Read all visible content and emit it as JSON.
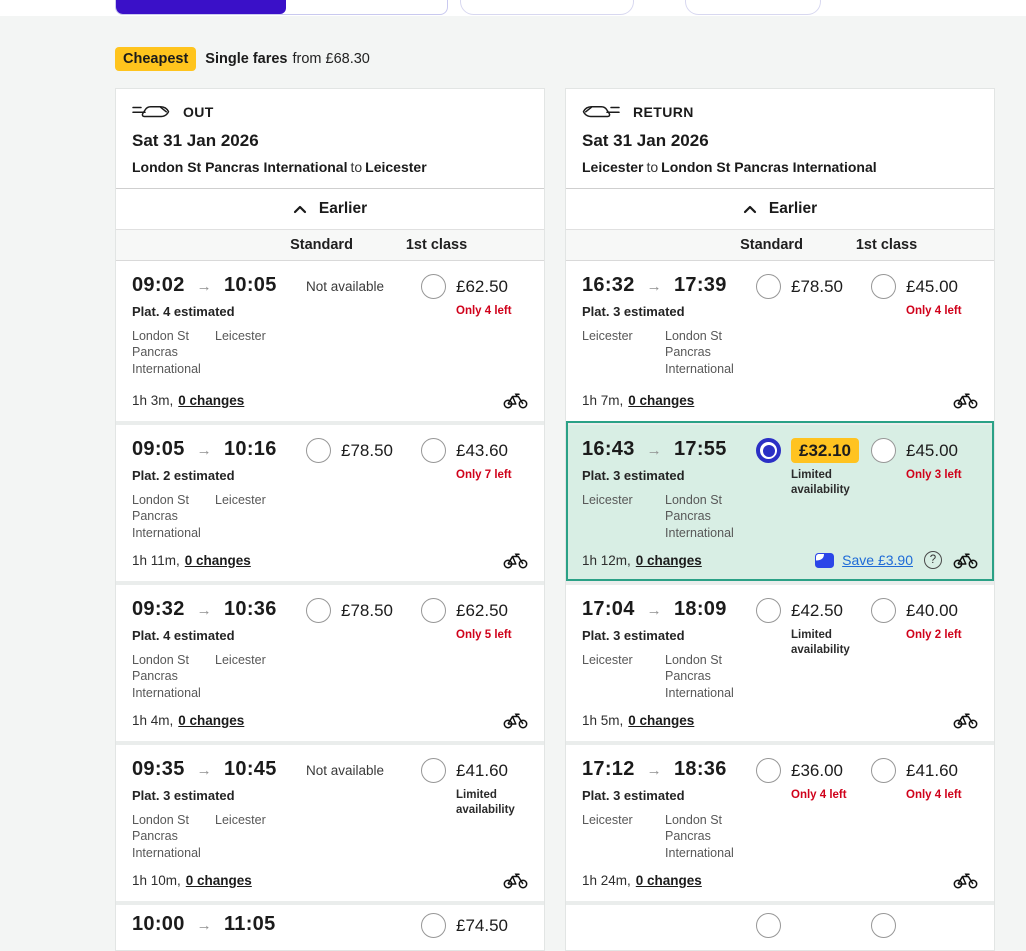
{
  "top_bar": {
    "segment_fill_color": "#3a10c8"
  },
  "banner": {
    "badge": "Cheapest",
    "title": "Single fares",
    "subtitle": "from £68.30"
  },
  "labels": {
    "standard": "Standard",
    "first_class": "1st class",
    "earlier": "Earlier",
    "to": "to",
    "help_glyph": "?"
  },
  "out": {
    "direction": "OUT",
    "date": "Sat 31 Jan 2026",
    "origin": "London St Pancras International",
    "destination": "Leicester",
    "rows": [
      {
        "dep": "09:02",
        "arr": "10:05",
        "platform": "Plat. 4 estimated",
        "from": "London St Pancras International",
        "to": "Leicester",
        "duration": "1h 3m,",
        "changes": "0 changes",
        "standard": {
          "type": "na",
          "label": "Not available"
        },
        "first": {
          "type": "fare",
          "price": "£62.50",
          "note": "Only 4 left",
          "note_style": "scarce"
        }
      },
      {
        "dep": "09:05",
        "arr": "10:16",
        "platform": "Plat. 2 estimated",
        "from": "London St Pancras International",
        "to": "Leicester",
        "duration": "1h 11m,",
        "changes": "0 changes",
        "standard": {
          "type": "fare",
          "price": "£78.50"
        },
        "first": {
          "type": "fare",
          "price": "£43.60",
          "note": "Only 7 left",
          "note_style": "scarce"
        }
      },
      {
        "dep": "09:32",
        "arr": "10:36",
        "platform": "Plat. 4 estimated",
        "from": "London St Pancras International",
        "to": "Leicester",
        "duration": "1h 4m,",
        "changes": "0 changes",
        "standard": {
          "type": "fare",
          "price": "£78.50"
        },
        "first": {
          "type": "fare",
          "price": "£62.50",
          "note": "Only 5 left",
          "note_style": "scarce"
        }
      },
      {
        "dep": "09:35",
        "arr": "10:45",
        "platform": "Plat. 3 estimated",
        "from": "London St Pancras International",
        "to": "Leicester",
        "duration": "1h 10m,",
        "changes": "0 changes",
        "standard": {
          "type": "na",
          "label": "Not available"
        },
        "first": {
          "type": "fare",
          "price": "£41.60",
          "note": "Limited availability",
          "note_style": "limited"
        }
      },
      {
        "partial": true,
        "dep": "10:00",
        "arr": "11:05",
        "first": {
          "type": "fare",
          "price": "£74.50"
        }
      }
    ]
  },
  "return": {
    "direction": "RETURN",
    "date": "Sat 31 Jan 2026",
    "origin": "Leicester",
    "destination": "London St Pancras International",
    "rows": [
      {
        "dep": "16:32",
        "arr": "17:39",
        "platform": "Plat. 3 estimated",
        "from": "Leicester",
        "to": "London St Pancras International",
        "duration": "1h 7m,",
        "changes": "0 changes",
        "standard": {
          "type": "fare",
          "price": "£78.50"
        },
        "first": {
          "type": "fare",
          "price": "£45.00",
          "note": "Only 4 left",
          "note_style": "scarce"
        }
      },
      {
        "selected": true,
        "dep": "16:43",
        "arr": "17:55",
        "platform": "Plat. 3 estimated",
        "from": "Leicester",
        "to": "London St Pancras International",
        "duration": "1h 12m,",
        "changes": "0 changes",
        "save": "Save £3.90",
        "standard": {
          "type": "fare",
          "selected": true,
          "price": "£32.10",
          "note": "Limited availability",
          "note_style": "limited"
        },
        "first": {
          "type": "fare",
          "price": "£45.00",
          "note": "Only 3 left",
          "note_style": "scarce"
        }
      },
      {
        "dep": "17:04",
        "arr": "18:09",
        "platform": "Plat. 3 estimated",
        "from": "Leicester",
        "to": "London St Pancras International",
        "duration": "1h 5m,",
        "changes": "0 changes",
        "standard": {
          "type": "fare",
          "price": "£42.50",
          "note": "Limited availability",
          "note_style": "limited"
        },
        "first": {
          "type": "fare",
          "price": "£40.00",
          "note": "Only 2 left",
          "note_style": "scarce"
        }
      },
      {
        "dep": "17:12",
        "arr": "18:36",
        "platform": "Plat. 3 estimated",
        "from": "Leicester",
        "to": "London St Pancras International",
        "duration": "1h 24m,",
        "changes": "0 changes",
        "standard": {
          "type": "fare",
          "price": "£36.00",
          "note": "Only 4 left",
          "note_style": "scarce"
        },
        "first": {
          "type": "fare",
          "price": "£41.60",
          "note": "Only 4 left",
          "note_style": "scarce"
        }
      },
      {
        "partial": true,
        "standard": {
          "type": "fare",
          "price": ""
        },
        "first": {
          "type": "fare",
          "price": ""
        }
      }
    ]
  }
}
